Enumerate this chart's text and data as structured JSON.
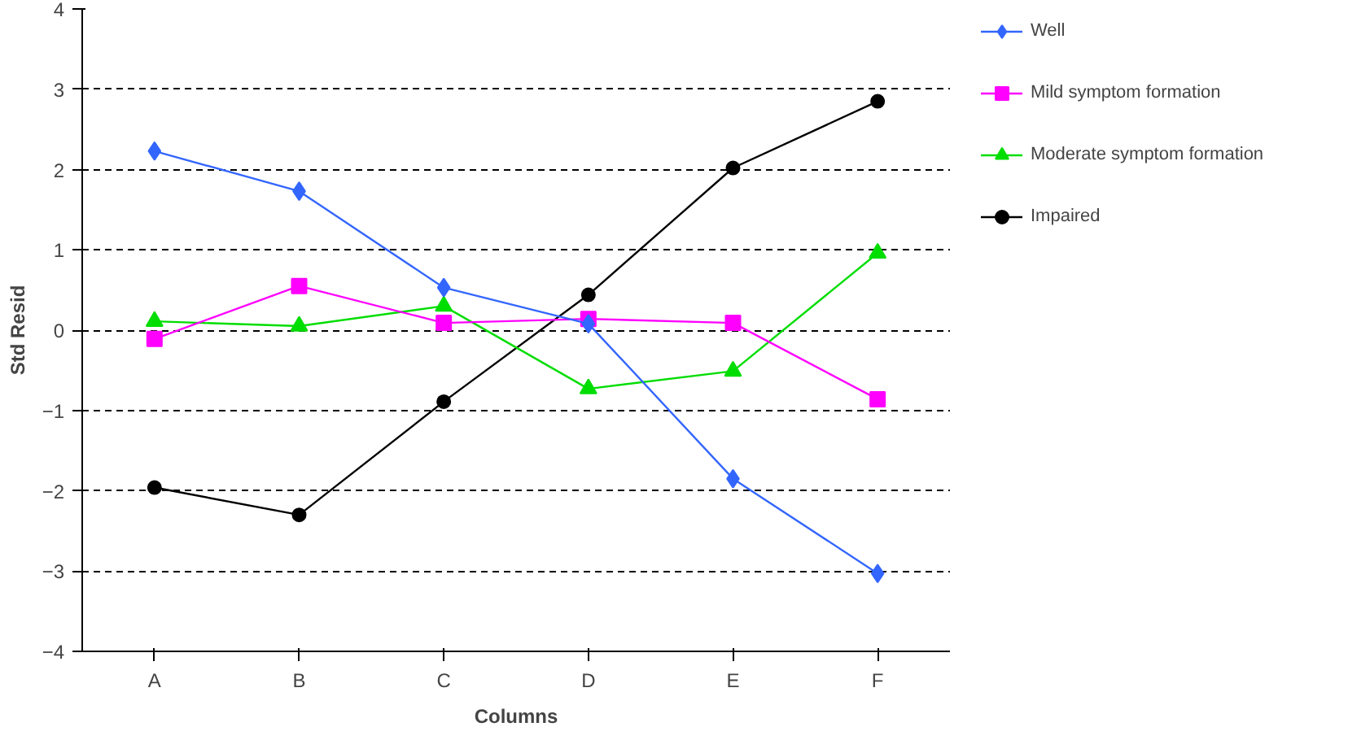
{
  "chart_data": {
    "type": "line",
    "xlabel": "Columns",
    "ylabel": "Std Resid",
    "categories": [
      "A",
      "B",
      "C",
      "D",
      "E",
      "F"
    ],
    "series": [
      {
        "name": "Well",
        "color": "#3366ff",
        "marker": "diamond",
        "values": [
          2.23,
          1.73,
          0.53,
          0.08,
          -1.85,
          -3.03
        ]
      },
      {
        "name": "Mild symptom formation",
        "color": "#ff00ff",
        "marker": "square",
        "values": [
          -0.11,
          0.55,
          0.09,
          0.14,
          0.09,
          -0.86
        ]
      },
      {
        "name": "Moderate symptom formation",
        "color": "#00dd00",
        "marker": "triangle",
        "values": [
          0.11,
          0.05,
          0.3,
          -0.73,
          -0.51,
          0.96
        ]
      },
      {
        "name": "Impaired",
        "color": "#000000",
        "marker": "circle",
        "values": [
          -1.96,
          -2.3,
          -0.89,
          0.44,
          2.02,
          2.85
        ]
      }
    ],
    "ylim": [
      -4,
      4
    ],
    "yticks": [
      -4,
      -3,
      -2,
      -1,
      0,
      1,
      2,
      3,
      4
    ],
    "grid": "y",
    "legend": "right",
    "line_style": "solid"
  }
}
